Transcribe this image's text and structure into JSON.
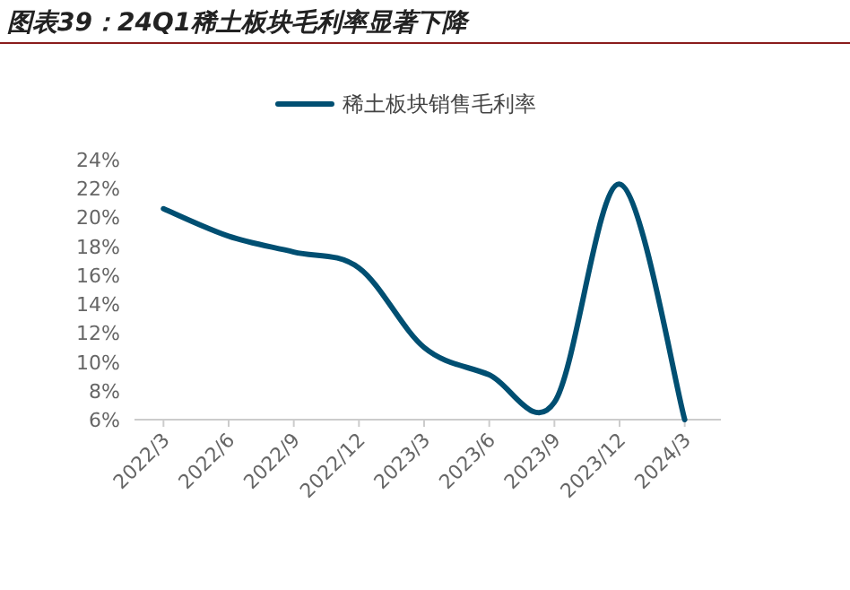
{
  "chart_data": {
    "type": "line",
    "title": "图表39：24Q1稀土板块毛利率显著下降",
    "categories": [
      "2022/3",
      "2022/6",
      "2022/9",
      "2022/12",
      "2023/3",
      "2023/6",
      "2023/9",
      "2023/12",
      "2024/3"
    ],
    "series": [
      {
        "name": "稀土板块销售毛利率",
        "color": "#004f72",
        "values": [
          20.6,
          18.7,
          17.6,
          16.5,
          11.0,
          9.1,
          7.2,
          22.3,
          6.0
        ]
      }
    ],
    "ylim": [
      6,
      24
    ],
    "yticks": [
      {
        "value": 6,
        "label": "6%"
      },
      {
        "value": 8,
        "label": "8%"
      },
      {
        "value": 10,
        "label": "10%"
      },
      {
        "value": 12,
        "label": "12%"
      },
      {
        "value": 14,
        "label": "14%"
      },
      {
        "value": 16,
        "label": "16%"
      },
      {
        "value": 18,
        "label": "18%"
      },
      {
        "value": 20,
        "label": "20%"
      },
      {
        "value": 22,
        "label": "22%"
      },
      {
        "value": 24,
        "label": "24%"
      }
    ],
    "legend": "top"
  }
}
